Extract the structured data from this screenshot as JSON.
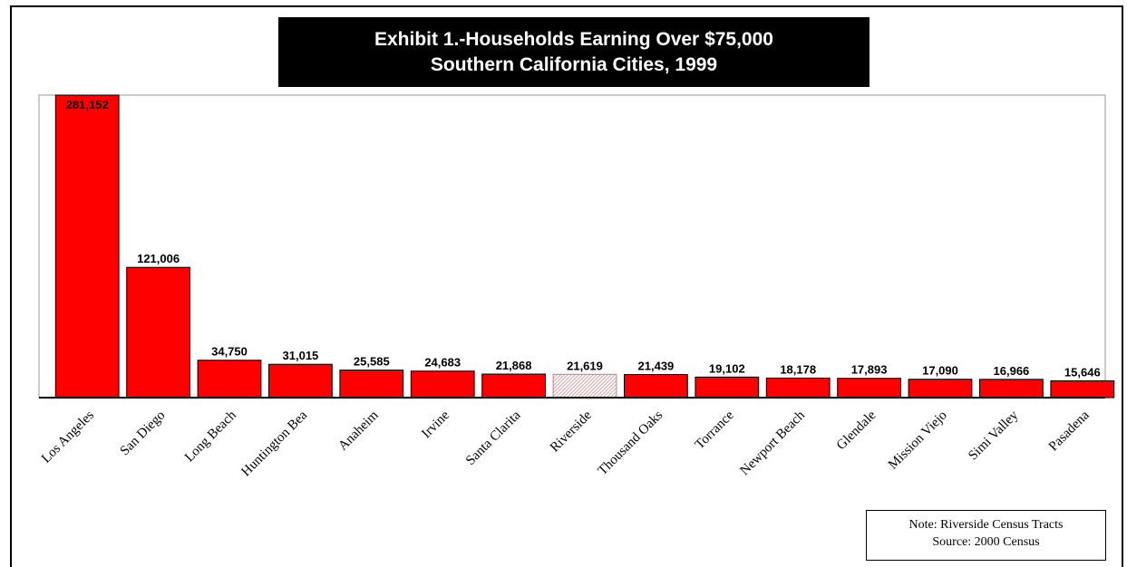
{
  "title": {
    "line1": "Exhibit 1.-Households Earning Over $75,000",
    "line2": "Southern California Cities, 1999"
  },
  "note": {
    "line1": "Note:  Riverside Census Tracts",
    "line2": "Source:  2000 Census"
  },
  "colors": {
    "bar": "#ff0000",
    "highlight_bar": "#f4c9c9",
    "title_bg": "#000000"
  },
  "chart_data": {
    "type": "bar",
    "title": "Exhibit 1.-Households Earning Over $75,000 Southern California Cities, 1999",
    "xlabel": "",
    "ylabel": "",
    "grid": false,
    "categories": [
      "Los Angeles",
      "San Diego",
      "Long Beach",
      "Huntington Bea",
      "Anaheim",
      "Irvine",
      "Santa Clarita",
      "Riverside",
      "Thousand Oaks",
      "Torrance",
      "Newport Beach",
      "Glendale",
      "Mission Viejo",
      "Simi Valley",
      "Pasadena"
    ],
    "values": [
      281152,
      121006,
      34750,
      31015,
      25585,
      24683,
      21868,
      21619,
      21439,
      19102,
      18178,
      17893,
      17090,
      16966,
      15646
    ],
    "value_labels": [
      "281,152",
      "121,006",
      "34,750",
      "31,015",
      "25,585",
      "24,683",
      "21,868",
      "21,619",
      "21,439",
      "19,102",
      "18,178",
      "17,893",
      "17,090",
      "16,966",
      "15,646"
    ],
    "highlight": "Riverside"
  }
}
